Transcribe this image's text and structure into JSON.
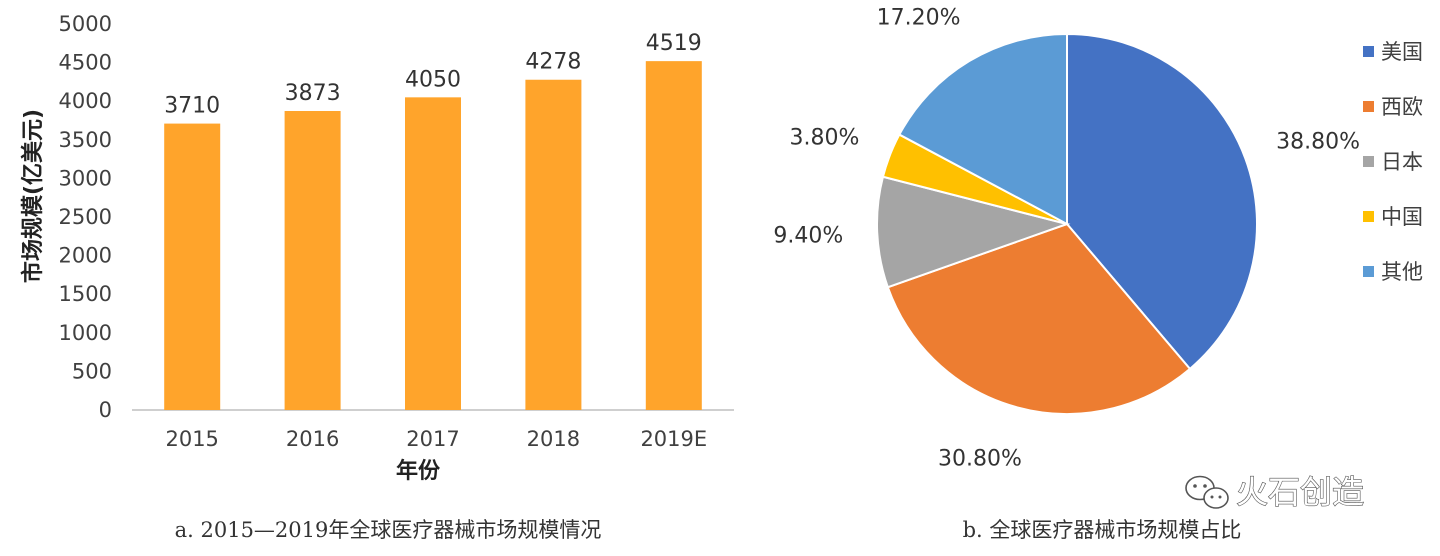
{
  "chart_data": [
    {
      "type": "bar",
      "categories": [
        "2015",
        "2016",
        "2017",
        "2018",
        "2019E"
      ],
      "values": [
        3710,
        3873,
        4050,
        4278,
        4519
      ],
      "data_labels": [
        "3710",
        "3873",
        "4050",
        "4278",
        "4519"
      ],
      "xlabel": "年份",
      "ylabel": "市场规模(亿美元)",
      "ylim": [
        0,
        5000
      ],
      "yticks": [
        "0",
        "500",
        "1000",
        "1500",
        "2000",
        "2500",
        "3000",
        "3500",
        "4000",
        "4500",
        "5000"
      ],
      "grid": false,
      "bar_color": "#FFA42B",
      "caption": "a. 2015—2019年全球医疗器械市场规模情况"
    },
    {
      "type": "pie",
      "labels": [
        "美国",
        "西欧",
        "日本",
        "中国",
        "其他"
      ],
      "values": [
        38.8,
        30.8,
        9.4,
        3.8,
        17.2
      ],
      "data_labels": [
        "38.80%",
        "30.80%",
        "9.40%",
        "3.80%",
        "17.20%"
      ],
      "colors": [
        "#4472C4",
        "#ED7D31",
        "#A5A5A5",
        "#FFC000",
        "#5B9BD5"
      ],
      "legend": "right",
      "caption": "b. 全球医疗器械市场规模占比"
    }
  ],
  "watermark": {
    "text": "火石创造",
    "icon": "wechat-icon"
  }
}
